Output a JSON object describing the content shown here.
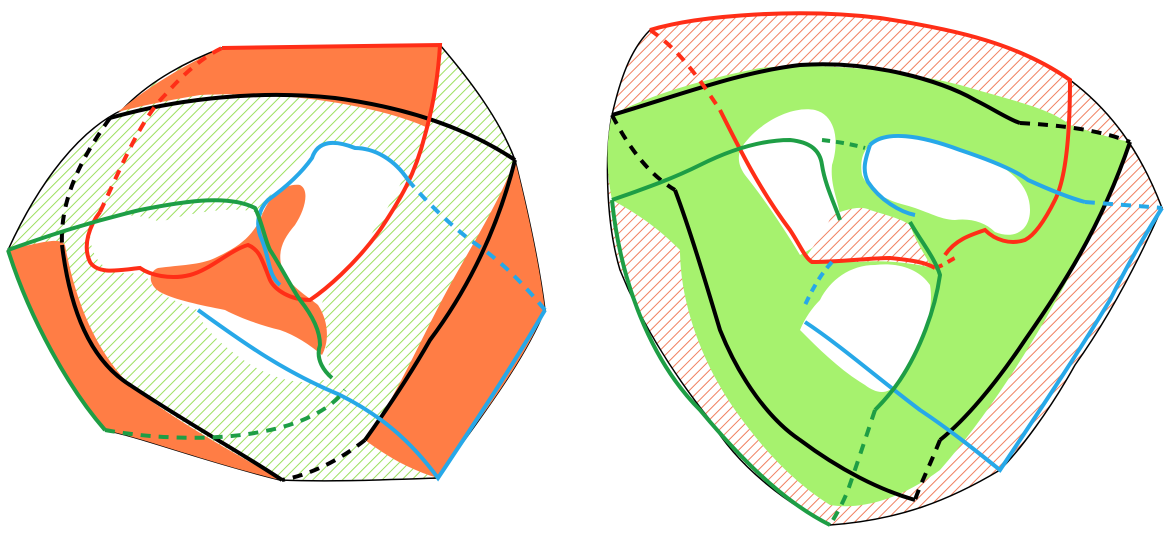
{
  "colors": {
    "orange": "#FF7D45",
    "orange_hatch": "#F08060",
    "green": "#A6F26E",
    "green_hatch": "#9DE060",
    "red": "#FF2E17",
    "blue": "#27A8E8",
    "green_line": "#1E9E45",
    "black": "#000000",
    "white": "#FFFFFF"
  },
  "figures": [
    {
      "id": "left-surface",
      "solid_fill": "orange",
      "hatch_fill": "green"
    },
    {
      "id": "right-surface",
      "solid_fill": "green",
      "hatch_fill": "orange"
    }
  ]
}
